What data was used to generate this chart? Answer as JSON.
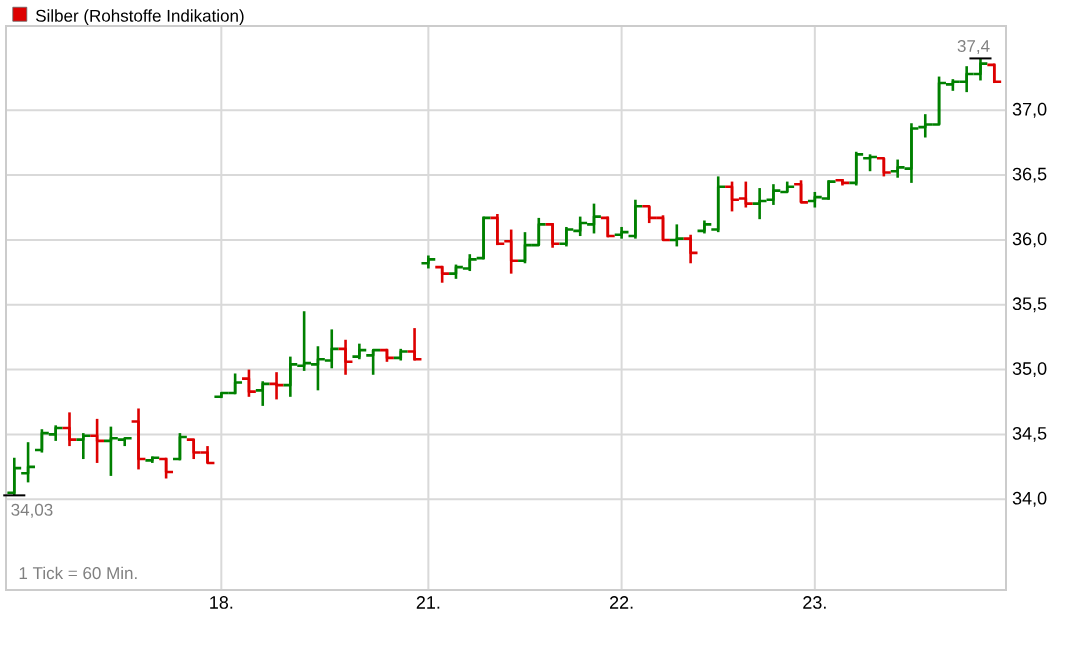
{
  "chart_data": {
    "type": "candlestick",
    "categories": [
      null,
      null,
      null,
      null,
      null,
      null,
      null,
      null,
      null,
      null,
      null,
      null,
      null,
      null,
      null,
      "18.",
      null,
      null,
      null,
      null,
      null,
      null,
      null,
      null,
      null,
      null,
      null,
      null,
      null,
      null,
      "21.",
      null,
      null,
      null,
      null,
      null,
      null,
      null,
      null,
      null,
      null,
      null,
      null,
      null,
      "22.",
      null,
      null,
      null,
      null,
      null,
      null,
      null,
      null,
      null,
      null,
      null,
      null,
      null,
      "23.",
      null,
      null,
      null,
      null,
      null,
      null,
      null,
      null,
      null,
      null,
      null,
      null,
      null
    ],
    "series": [
      {
        "name": "Silber (Rohstoffe Indikation)",
        "color": "#dd0000",
        "colors": [
          "#008000",
          "#008000",
          "#008000",
          "#008000",
          "#dd0000",
          "#008000",
          "#dd0000",
          "#008000",
          "#008000",
          "#dd0000",
          "#008000",
          "#dd0000",
          "#008000",
          "#dd0000",
          "#dd0000",
          "#008000",
          "#008000",
          "#dd0000",
          "#008000",
          "#dd0000",
          "#008000",
          "#008000",
          "#008000",
          "#008000",
          "#dd0000",
          "#008000",
          "#008000",
          "#dd0000",
          "#008000",
          "#dd0000",
          "#008000",
          "#dd0000",
          "#008000",
          "#008000",
          "#008000",
          "#dd0000",
          "#dd0000",
          "#008000",
          "#008000",
          "#dd0000",
          "#008000",
          "#008000",
          "#008000",
          "#dd0000",
          "#008000",
          "#008000",
          "#dd0000",
          "#dd0000",
          "#008000",
          "#dd0000",
          "#008000",
          "#008000",
          "#dd0000",
          "#dd0000",
          "#008000",
          "#008000",
          "#008000",
          "#dd0000",
          "#008000",
          "#008000",
          "#dd0000",
          "#008000",
          "#008000",
          "#dd0000",
          "#008000",
          "#008000",
          "#008000",
          "#008000",
          "#008000",
          "#008000",
          "#008000",
          "#dd0000"
        ],
        "ohlc": [
          [
            34.05,
            34.32,
            34.03,
            34.24
          ],
          [
            34.2,
            34.44,
            34.13,
            34.25
          ],
          [
            34.38,
            34.54,
            34.36,
            34.51
          ],
          [
            34.5,
            34.57,
            34.45,
            34.55
          ],
          [
            34.55,
            34.67,
            34.41,
            34.46
          ],
          [
            34.46,
            34.51,
            34.31,
            34.49
          ],
          [
            34.49,
            34.62,
            34.28,
            34.45
          ],
          [
            34.45,
            34.56,
            34.18,
            34.47
          ],
          [
            34.46,
            34.47,
            34.41,
            34.47
          ],
          [
            34.6,
            34.7,
            34.23,
            34.31
          ],
          [
            34.3,
            34.33,
            34.28,
            34.32
          ],
          [
            34.31,
            34.32,
            34.16,
            34.21
          ],
          [
            34.31,
            34.51,
            34.3,
            34.48
          ],
          [
            34.46,
            34.46,
            34.31,
            34.36
          ],
          [
            34.36,
            34.41,
            34.28,
            34.28
          ],
          [
            34.79,
            34.82,
            34.78,
            34.82
          ],
          [
            34.82,
            34.97,
            34.81,
            34.9
          ],
          [
            34.93,
            35.0,
            34.79,
            34.83
          ],
          [
            34.84,
            34.91,
            34.72,
            34.89
          ],
          [
            34.89,
            34.98,
            34.77,
            34.88
          ],
          [
            34.88,
            35.1,
            34.79,
            35.04
          ],
          [
            35.03,
            35.45,
            34.99,
            35.05
          ],
          [
            35.04,
            35.18,
            34.84,
            35.08
          ],
          [
            35.07,
            35.31,
            35.01,
            35.16
          ],
          [
            35.16,
            35.23,
            34.96,
            35.06
          ],
          [
            35.1,
            35.2,
            35.08,
            35.15
          ],
          [
            35.11,
            35.15,
            34.96,
            35.15
          ],
          [
            35.15,
            35.16,
            35.06,
            35.09
          ],
          [
            35.09,
            35.16,
            35.07,
            35.14
          ],
          [
            35.14,
            35.32,
            35.07,
            35.08
          ],
          [
            35.82,
            35.88,
            35.78,
            35.85
          ],
          [
            35.79,
            35.8,
            35.67,
            35.74
          ],
          [
            35.74,
            35.81,
            35.7,
            35.79
          ],
          [
            35.78,
            35.89,
            35.76,
            35.85
          ],
          [
            35.86,
            36.18,
            35.85,
            36.17
          ],
          [
            36.17,
            36.2,
            35.96,
            35.97
          ],
          [
            35.99,
            36.08,
            35.74,
            35.84
          ],
          [
            35.84,
            36.06,
            35.82,
            35.96
          ],
          [
            35.96,
            36.17,
            35.96,
            36.12
          ],
          [
            36.12,
            36.13,
            35.94,
            35.97
          ],
          [
            35.97,
            36.1,
            35.95,
            36.08
          ],
          [
            36.07,
            36.18,
            36.03,
            36.13
          ],
          [
            36.12,
            36.28,
            36.05,
            36.18
          ],
          [
            36.17,
            36.18,
            36.02,
            36.03
          ],
          [
            36.04,
            36.1,
            36.01,
            36.06
          ],
          [
            36.03,
            36.31,
            36.01,
            36.26
          ],
          [
            36.26,
            36.26,
            36.13,
            36.17
          ],
          [
            36.17,
            36.19,
            36.0,
            36.0
          ],
          [
            36.0,
            36.12,
            35.95,
            36.01
          ],
          [
            36.01,
            36.04,
            35.82,
            35.9
          ],
          [
            36.07,
            36.15,
            36.05,
            36.12
          ],
          [
            36.08,
            36.49,
            36.06,
            36.41
          ],
          [
            36.41,
            36.45,
            36.22,
            36.31
          ],
          [
            36.32,
            36.45,
            36.25,
            36.28
          ],
          [
            36.28,
            36.4,
            36.16,
            36.3
          ],
          [
            36.31,
            36.43,
            36.27,
            36.38
          ],
          [
            36.37,
            36.45,
            36.37,
            36.41
          ],
          [
            36.43,
            36.46,
            36.29,
            36.29
          ],
          [
            36.3,
            36.37,
            36.25,
            36.33
          ],
          [
            36.32,
            36.46,
            36.31,
            36.45
          ],
          [
            36.46,
            36.47,
            36.42,
            36.44
          ],
          [
            36.44,
            36.68,
            36.42,
            36.66
          ],
          [
            36.63,
            36.66,
            36.53,
            36.64
          ],
          [
            36.63,
            36.63,
            36.49,
            36.52
          ],
          [
            36.53,
            36.62,
            36.48,
            36.56
          ],
          [
            36.55,
            36.9,
            36.44,
            36.86
          ],
          [
            36.87,
            36.97,
            36.79,
            36.89
          ],
          [
            36.89,
            37.26,
            36.89,
            37.21
          ],
          [
            37.2,
            37.24,
            37.15,
            37.22
          ],
          [
            37.22,
            37.34,
            37.14,
            37.28
          ],
          [
            37.28,
            37.4,
            37.23,
            37.36
          ],
          [
            37.35,
            37.36,
            37.21,
            37.22
          ]
        ]
      }
    ],
    "ylim": [
      33.3,
      37.65
    ],
    "yticks": [
      {
        "value": 34.0,
        "label": "34,0"
      },
      {
        "value": 34.5,
        "label": "34,5"
      },
      {
        "value": 35.0,
        "label": "35,0"
      },
      {
        "value": 35.5,
        "label": "35,5"
      },
      {
        "value": 36.0,
        "label": "36,0"
      },
      {
        "value": 36.5,
        "label": "36,5"
      },
      {
        "value": 37.0,
        "label": "37,0"
      }
    ],
    "grid": true,
    "legend": "top left",
    "annotations": [
      "34,03",
      {
        "text": "37,4",
        "y": 37.4
      },
      "1 Tick = 60 Min."
    ]
  }
}
